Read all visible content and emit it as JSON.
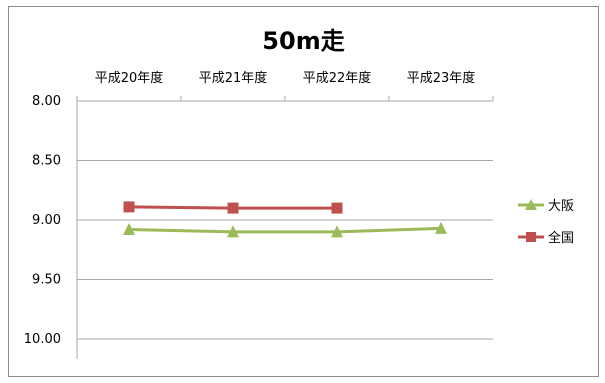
{
  "chart_data": {
    "type": "line",
    "title": "50m走",
    "categories": [
      "平成20年度",
      "平成21年度",
      "平成22年度",
      "平成23年度"
    ],
    "y_ticks": [
      "8.00",
      "8.50",
      "9.00",
      "9.50",
      "10.00"
    ],
    "ylim": [
      8.0,
      10.0
    ],
    "y_inverted": true,
    "x_axis_position": "top",
    "grid": true,
    "legend_position": "right",
    "series": [
      {
        "name": "大阪",
        "values": [
          9.08,
          9.1,
          9.1,
          9.07
        ],
        "color": "#9bbb59",
        "marker": "triangle"
      },
      {
        "name": "全国",
        "values": [
          8.89,
          8.9,
          8.9,
          null
        ],
        "color": "#c0504d",
        "marker": "square"
      }
    ]
  }
}
